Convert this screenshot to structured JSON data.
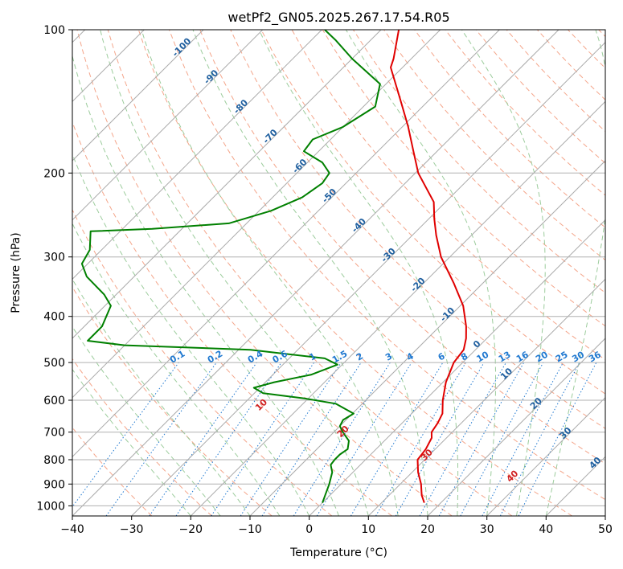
{
  "chart_data": {
    "type": "line",
    "title": "wetPf2_GN05.2025.267.17.54.R05",
    "xlabel": "Temperature (°C)",
    "ylabel": "Pressure (hPa)",
    "xlim": [
      -40,
      50
    ],
    "ylim": [
      1050,
      100
    ],
    "y_scale": "log",
    "grid": true,
    "x_ticks": [
      "−40",
      "−30",
      "−20",
      "−10",
      "0",
      "10",
      "20",
      "30",
      "40",
      "50"
    ],
    "y_ticks": [
      "1000",
      "900",
      "800",
      "700",
      "600",
      "500",
      "400",
      "300",
      "200",
      "100"
    ],
    "colors": {
      "temperature": "#e00000",
      "dewpoint": "#008000",
      "isotherm": "#aaaaaa",
      "dry_adiabat": "#f4a58a",
      "moist_adiabat": "#9ccc9c",
      "mixing_ratio": "#1f78d0",
      "isotherm_label": "#1f5f9f",
      "theta_label": "#d02020"
    },
    "series": [
      {
        "key": "temperature",
        "points": [
          {
            "p": 985,
            "t": 17.2
          },
          {
            "p": 950,
            "t": 15.5
          },
          {
            "p": 900,
            "t": 13.5
          },
          {
            "p": 850,
            "t": 11.0
          },
          {
            "p": 800,
            "t": 8.8
          },
          {
            "p": 760,
            "t": 8.4
          },
          {
            "p": 720,
            "t": 7.5
          },
          {
            "p": 700,
            "t": 6.5
          },
          {
            "p": 670,
            "t": 6.0
          },
          {
            "p": 640,
            "t": 5.2
          },
          {
            "p": 600,
            "t": 3.0
          },
          {
            "p": 550,
            "t": 0.5
          },
          {
            "p": 500,
            "t": -1.5
          },
          {
            "p": 470,
            "t": -2.0
          },
          {
            "p": 445,
            "t": -3.5
          },
          {
            "p": 420,
            "t": -5.5
          },
          {
            "p": 380,
            "t": -9.5
          },
          {
            "p": 340,
            "t": -15.0
          },
          {
            "p": 300,
            "t": -21.5
          },
          {
            "p": 270,
            "t": -26.0
          },
          {
            "p": 250,
            "t": -29.0
          },
          {
            "p": 230,
            "t": -32.0
          },
          {
            "p": 200,
            "t": -39.5
          },
          {
            "p": 180,
            "t": -44.0
          },
          {
            "p": 160,
            "t": -49.0
          },
          {
            "p": 140,
            "t": -55.0
          },
          {
            "p": 120,
            "t": -62.0
          },
          {
            "p": 115,
            "t": -63.0
          },
          {
            "p": 100,
            "t": -67.0
          }
        ]
      },
      {
        "key": "dewpoint",
        "points": [
          {
            "p": 985,
            "t": 0.0
          },
          {
            "p": 950,
            "t": -0.8
          },
          {
            "p": 900,
            "t": -2.0
          },
          {
            "p": 850,
            "t": -3.5
          },
          {
            "p": 820,
            "t": -5.0
          },
          {
            "p": 800,
            "t": -5.2
          },
          {
            "p": 780,
            "t": -5.2
          },
          {
            "p": 760,
            "t": -4.8
          },
          {
            "p": 730,
            "t": -6.0
          },
          {
            "p": 700,
            "t": -8.5
          },
          {
            "p": 680,
            "t": -10.0
          },
          {
            "p": 660,
            "t": -10.5
          },
          {
            "p": 640,
            "t": -9.8
          },
          {
            "p": 610,
            "t": -14.5
          },
          {
            "p": 595,
            "t": -20.5
          },
          {
            "p": 580,
            "t": -28.5
          },
          {
            "p": 565,
            "t": -31.0
          },
          {
            "p": 550,
            "t": -28.5
          },
          {
            "p": 530,
            "t": -23.5
          },
          {
            "p": 505,
            "t": -20.8
          },
          {
            "p": 490,
            "t": -24.0
          },
          {
            "p": 470,
            "t": -38.0
          },
          {
            "p": 460,
            "t": -60.0
          },
          {
            "p": 450,
            "t": -67.0
          },
          {
            "p": 420,
            "t": -67.0
          },
          {
            "p": 380,
            "t": -69.0
          },
          {
            "p": 360,
            "t": -72.0
          },
          {
            "p": 330,
            "t": -78.0
          },
          {
            "p": 310,
            "t": -81.0
          },
          {
            "p": 290,
            "t": -82.0
          },
          {
            "p": 265,
            "t": -85.0
          },
          {
            "p": 262,
            "t": -75.0
          },
          {
            "p": 255,
            "t": -63.0
          },
          {
            "p": 240,
            "t": -58.0
          },
          {
            "p": 225,
            "t": -55.0
          },
          {
            "p": 210,
            "t": -54.0
          },
          {
            "p": 200,
            "t": -54.5
          },
          {
            "p": 190,
            "t": -57.5
          },
          {
            "p": 180,
            "t": -62.5
          },
          {
            "p": 170,
            "t": -63.0
          },
          {
            "p": 160,
            "t": -60.0
          },
          {
            "p": 145,
            "t": -58.0
          },
          {
            "p": 130,
            "t": -61.0
          },
          {
            "p": 115,
            "t": -70.0
          },
          {
            "p": 105,
            "t": -76.0
          },
          {
            "p": 100,
            "t": -79.5
          }
        ]
      }
    ],
    "isotherm_labels": [
      "-100",
      "-90",
      "-80",
      "-70",
      "-60",
      "-50",
      "-40",
      "-30",
      "-20",
      "-10",
      "0",
      "10",
      "20",
      "30",
      "40"
    ],
    "mixing_ratio_labels": [
      "0.1",
      "0.2",
      "0.4",
      "0.6",
      "1",
      "1.5",
      "2",
      "3",
      "4",
      "6",
      "8",
      "10",
      "13",
      "16",
      "20",
      "25",
      "30",
      "36"
    ],
    "theta_labels": [
      "10",
      "20",
      "30",
      "40"
    ]
  }
}
